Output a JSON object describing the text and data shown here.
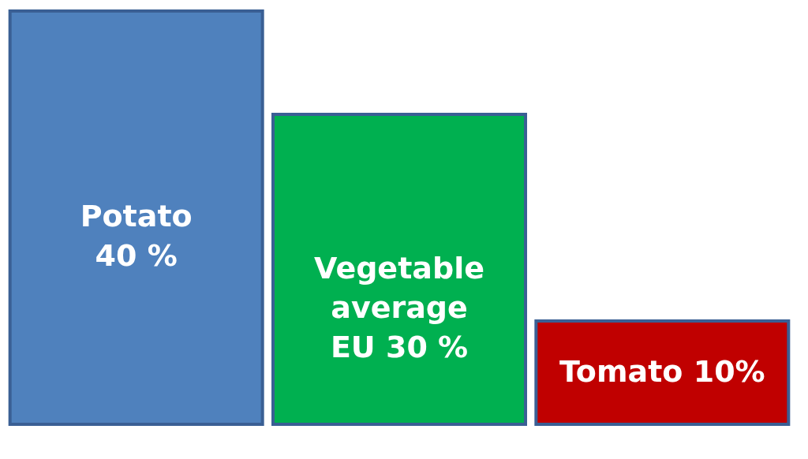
{
  "chart_data": {
    "type": "bar",
    "categories": [
      "Potato",
      "Vegetable average EU",
      "Tomato"
    ],
    "values": [
      40,
      30,
      10
    ],
    "colors": [
      "#4f81bd",
      "#00b050",
      "#c00000"
    ],
    "value_labels": [
      "40 %",
      "30 %",
      "10%"
    ],
    "tick_labels": false
  }
}
